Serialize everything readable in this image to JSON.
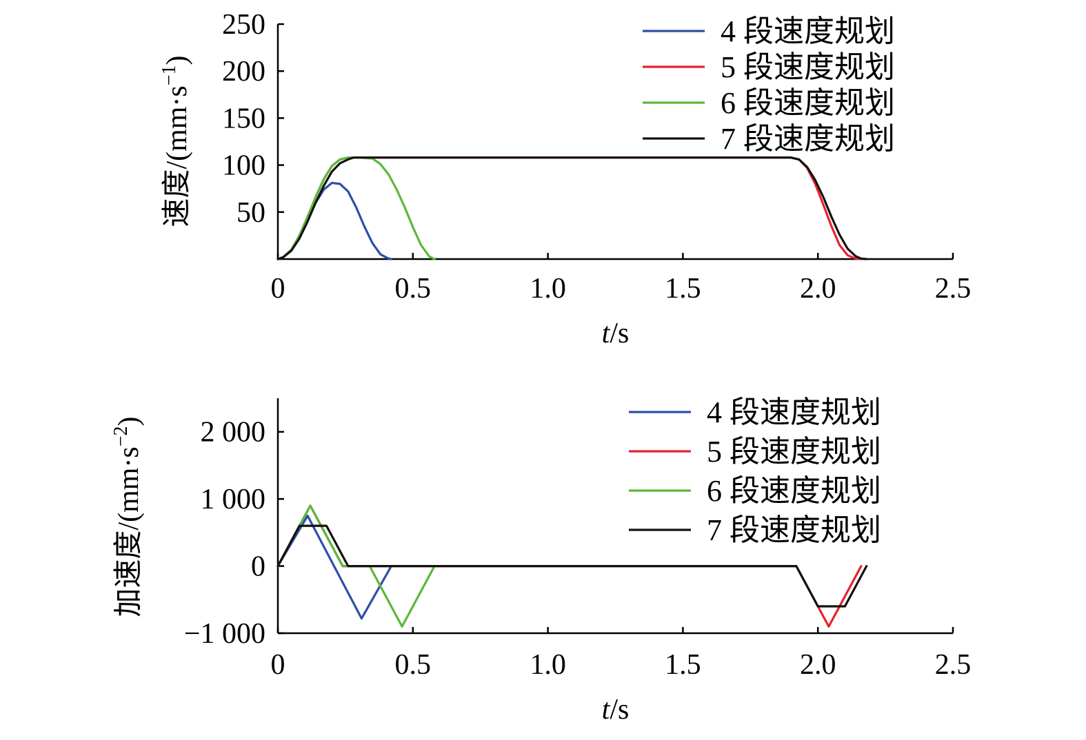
{
  "chart_data": [
    {
      "type": "line",
      "ylabel": "速度/(mm·s",
      "ylabel_sup": "−1",
      "ylabel_close": ")",
      "xlabel_italic": "t",
      "xlabel_rest": "/s",
      "xlim": [
        0,
        2.5
      ],
      "ylim": [
        0,
        250
      ],
      "xticks": [
        0,
        0.5,
        1.0,
        1.5,
        2.0,
        2.5
      ],
      "xtick_labels": [
        "0",
        "0.5",
        "1.0",
        "1.5",
        "2.0",
        "2.5"
      ],
      "yticks": [
        50,
        100,
        150,
        200,
        250
      ],
      "ytick_labels": [
        "50",
        "100",
        "150",
        "200",
        "250"
      ],
      "legend_position": "top-right",
      "series": [
        {
          "name": "4 段速度规划",
          "color": "#2d4fa8",
          "x": [
            0,
            0.02,
            0.05,
            0.08,
            0.11,
            0.14,
            0.17,
            0.2,
            0.23,
            0.26,
            0.29,
            0.32,
            0.35,
            0.38,
            0.41,
            0.42
          ],
          "y": [
            0,
            2,
            10,
            25,
            43,
            60,
            74,
            81,
            80,
            72,
            55,
            35,
            17,
            5,
            0.5,
            0
          ]
        },
        {
          "name": "5 段速度规划",
          "color": "#e8212e",
          "x": [
            0,
            0.02,
            0.05,
            0.08,
            0.11,
            0.14,
            0.17,
            0.2,
            0.23,
            0.26,
            0.3,
            0.5,
            1.0,
            1.5,
            1.9,
            1.93,
            1.96,
            1.99,
            2.02,
            2.05,
            2.08,
            2.11,
            2.14,
            2.16
          ],
          "y": [
            0,
            2,
            10,
            25,
            45,
            66,
            85,
            99,
            106,
            108,
            108,
            108,
            108,
            108,
            108,
            106,
            97,
            80,
            58,
            35,
            15,
            4,
            0.5,
            0
          ]
        },
        {
          "name": "6 段速度规划",
          "color": "#5cb83a",
          "x": [
            0,
            0.02,
            0.05,
            0.08,
            0.11,
            0.14,
            0.17,
            0.2,
            0.23,
            0.26,
            0.3,
            0.35,
            0.38,
            0.41,
            0.44,
            0.47,
            0.5,
            0.53,
            0.56,
            0.58
          ],
          "y": [
            0,
            2,
            10,
            25,
            45,
            66,
            85,
            99,
            106,
            108,
            108,
            107,
            101,
            90,
            74,
            55,
            34,
            15,
            3,
            0
          ]
        },
        {
          "name": "7 段速度规划",
          "color": "#111111",
          "x": [
            0,
            0.02,
            0.05,
            0.08,
            0.11,
            0.14,
            0.17,
            0.2,
            0.23,
            0.26,
            0.28,
            0.3,
            0.5,
            1.0,
            1.5,
            1.9,
            1.93,
            1.96,
            1.99,
            2.02,
            2.05,
            2.08,
            2.11,
            2.14,
            2.16,
            2.18
          ],
          "y": [
            0,
            2,
            9,
            22,
            40,
            60,
            78,
            93,
            102,
            106,
            108,
            108,
            108,
            108,
            108,
            108,
            106,
            98,
            84,
            66,
            45,
            26,
            11,
            3,
            0.5,
            0
          ]
        }
      ]
    },
    {
      "type": "line",
      "ylabel": "加速度/(mm·s",
      "ylabel_sup": "−2",
      "ylabel_close": ")",
      "xlabel_italic": "t",
      "xlabel_rest": "/s",
      "xlim": [
        0,
        2.5
      ],
      "ylim": [
        -1000,
        2500
      ],
      "xticks": [
        0,
        0.5,
        1.0,
        1.5,
        2.0,
        2.5
      ],
      "xtick_labels": [
        "0",
        "0.5",
        "1.0",
        "1.5",
        "2.0",
        "2.5"
      ],
      "yticks": [
        -1000,
        0,
        1000,
        2000
      ],
      "ytick_labels": [
        "−1 000",
        "0",
        "1 000",
        "2 000"
      ],
      "legend_position": "top-right",
      "series": [
        {
          "name": "4 段速度规划",
          "color": "#2d4fa8",
          "x": [
            0,
            0.11,
            0.31,
            0.42
          ],
          "y": [
            0,
            750,
            -780,
            0
          ]
        },
        {
          "name": "5 段速度规划",
          "color": "#e8212e",
          "x": [
            0,
            0.12,
            0.24,
            1.92,
            2.04,
            2.16
          ],
          "y": [
            0,
            900,
            0,
            0,
            -900,
            0
          ]
        },
        {
          "name": "6 段速度规划",
          "color": "#5cb83a",
          "x": [
            0,
            0.12,
            0.24,
            0.34,
            0.46,
            0.58
          ],
          "y": [
            0,
            900,
            0,
            0,
            -900,
            0
          ]
        },
        {
          "name": "7 段速度规划",
          "color": "#111111",
          "x": [
            0,
            0.08,
            0.18,
            0.26,
            1.92,
            2.0,
            2.1,
            2.18
          ],
          "y": [
            0,
            600,
            600,
            0,
            0,
            -600,
            -600,
            0
          ]
        }
      ]
    }
  ]
}
